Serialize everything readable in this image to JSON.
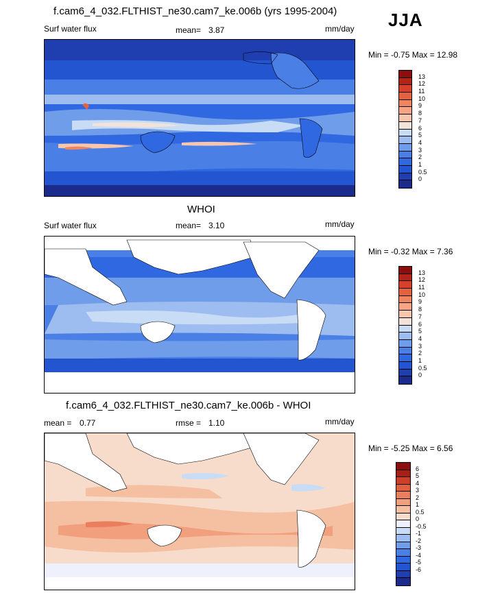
{
  "season": "JJA",
  "colors": {
    "precip": [
      "#1a2b8c",
      "#1f3fb0",
      "#2355d1",
      "#2f68e0",
      "#4a7fe6",
      "#6f9de9",
      "#9dbdf0",
      "#c9dcf6",
      "#f2e3da",
      "#f7c6ad",
      "#f5a585",
      "#ef8460",
      "#e5613f",
      "#d5412a",
      "#b52218",
      "#8c0e0e"
    ],
    "diff": [
      "#1a2b8c",
      "#1f3fb0",
      "#2355d1",
      "#2f68e0",
      "#4a7fe6",
      "#6f9de9",
      "#9dbdf0",
      "#c9dcf6",
      "#eef1fb",
      "#f8dccb",
      "#f5bfa2",
      "#f29f7e",
      "#eb7f5d",
      "#e0603f",
      "#cc3f28",
      "#a91f17",
      "#8c0e0e"
    ]
  },
  "panels": [
    {
      "id": "model",
      "title": "f.cam6_4_032.FLTHIST_ne30.cam7_ke.006b (yrs 1995-2004)",
      "left_label": "Surf water flux",
      "stat_label": "mean=",
      "stat_value": "3.87",
      "stat2_label": "",
      "stat2_value": "",
      "units": "mm/day",
      "min_max": "Min =  -0.75 Max =  12.98",
      "levels": [
        "13",
        "12",
        "11",
        "10",
        "9",
        "8",
        "7",
        "6",
        "5",
        "4",
        "3",
        "2",
        "1",
        "0.5",
        "0"
      ]
    },
    {
      "id": "obs",
      "title": "WHOI",
      "left_label": "Surf water flux",
      "stat_label": "mean=",
      "stat_value": "3.10",
      "stat2_label": "",
      "stat2_value": "",
      "units": "mm/day",
      "min_max": "Min =  -0.32 Max =   7.36",
      "levels": [
        "13",
        "12",
        "11",
        "10",
        "9",
        "8",
        "7",
        "6",
        "5",
        "4",
        "3",
        "2",
        "1",
        "0.5",
        "0"
      ]
    },
    {
      "id": "diff",
      "title": "f.cam6_4_032.FLTHIST_ne30.cam7_ke.006b - WHOI",
      "left_label": "mean =",
      "stat_label": "",
      "stat_value": "0.77",
      "stat2_label": "rmse =",
      "stat2_value": "1.10",
      "units": "mm/day",
      "min_max": "Min =  -5.25 Max =   6.56",
      "levels": [
        "6",
        "5",
        "4",
        "3",
        "2",
        "1",
        "0.5",
        "0",
        "-0.5",
        "-1",
        "-2",
        "-3",
        "-4",
        "-5",
        "-6"
      ]
    }
  ]
}
